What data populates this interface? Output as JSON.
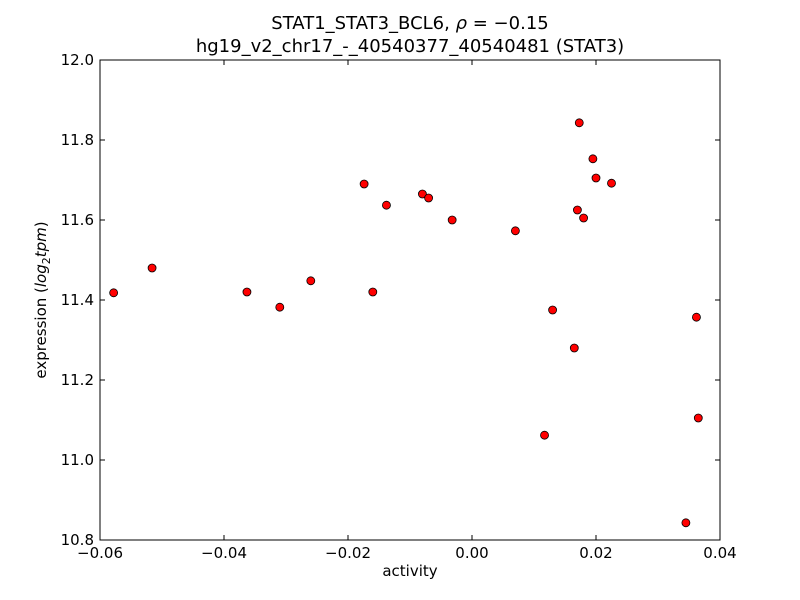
{
  "chart_data": {
    "type": "scatter",
    "title_line1_prefix": "STAT1_STAT3_BCL6, ",
    "title_line1_rho": "ρ",
    "title_line1_suffix": " = −0.15",
    "title_line2": "hg19_v2_chr17_-_40540377_40540481 (STAT3)",
    "xlabel": "activity",
    "ylabel_prefix": "expression (",
    "ylabel_math": "log",
    "ylabel_sub": "2",
    "ylabel_math2": "tpm",
    "ylabel_suffix": ")",
    "xlim": [
      -0.06,
      0.04
    ],
    "ylim": [
      10.8,
      12.0
    ],
    "xticks": [
      -0.06,
      -0.04,
      -0.02,
      0.0,
      0.02,
      0.04
    ],
    "xtick_labels": [
      "−0.06",
      "−0.04",
      "−0.02",
      "0.00",
      "0.02",
      "0.04"
    ],
    "yticks": [
      10.8,
      11.0,
      11.2,
      11.4,
      11.6,
      11.8,
      12.0
    ],
    "ytick_labels": [
      "10.8",
      "11.0",
      "11.2",
      "11.4",
      "11.6",
      "11.8",
      "12.0"
    ],
    "marker_color": "#ff0000",
    "marker_edge": "#000000",
    "points": [
      {
        "x": -0.0578,
        "y": 11.418
      },
      {
        "x": -0.0516,
        "y": 11.48
      },
      {
        "x": -0.0363,
        "y": 11.42
      },
      {
        "x": -0.031,
        "y": 11.382
      },
      {
        "x": -0.026,
        "y": 11.448
      },
      {
        "x": -0.0174,
        "y": 11.69
      },
      {
        "x": -0.016,
        "y": 11.42
      },
      {
        "x": -0.0138,
        "y": 11.637
      },
      {
        "x": -0.008,
        "y": 11.665
      },
      {
        "x": -0.007,
        "y": 11.655
      },
      {
        "x": -0.0032,
        "y": 11.6
      },
      {
        "x": 0.007,
        "y": 11.573
      },
      {
        "x": 0.0117,
        "y": 11.062
      },
      {
        "x": 0.013,
        "y": 11.375
      },
      {
        "x": 0.0165,
        "y": 11.28
      },
      {
        "x": 0.017,
        "y": 11.625
      },
      {
        "x": 0.0173,
        "y": 11.843
      },
      {
        "x": 0.018,
        "y": 11.605
      },
      {
        "x": 0.0195,
        "y": 11.753
      },
      {
        "x": 0.02,
        "y": 11.705
      },
      {
        "x": 0.0225,
        "y": 11.692
      },
      {
        "x": 0.0345,
        "y": 10.843
      },
      {
        "x": 0.0362,
        "y": 11.357
      },
      {
        "x": 0.0365,
        "y": 11.105
      }
    ]
  }
}
